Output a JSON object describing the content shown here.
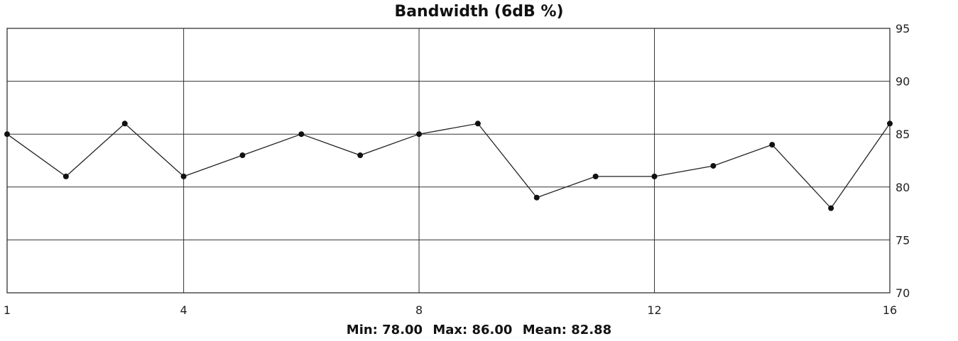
{
  "chart_data": {
    "type": "line",
    "title": "Bandwidth (6dB %)",
    "x": [
      1,
      2,
      3,
      4,
      5,
      6,
      7,
      8,
      9,
      10,
      11,
      12,
      13,
      14,
      15,
      16
    ],
    "series": [
      {
        "values": [
          85,
          81,
          86,
          81,
          83,
          85,
          83,
          85,
          86,
          79,
          81,
          81,
          82,
          84,
          78,
          86
        ]
      }
    ],
    "xlim": [
      1,
      16
    ],
    "ylim": [
      70,
      95
    ],
    "x_ticks": [
      "1",
      "4",
      "8",
      "12",
      "16"
    ],
    "y_ticks": [
      "70",
      "75",
      "80",
      "85",
      "90",
      "95"
    ],
    "y_axis_side": "right",
    "grid": true,
    "line_color": "#222222",
    "marker_color": "#111111"
  },
  "summary": {
    "min": "Min: 78.00",
    "max": "Max: 86.00",
    "mean": "Mean: 82.88"
  }
}
